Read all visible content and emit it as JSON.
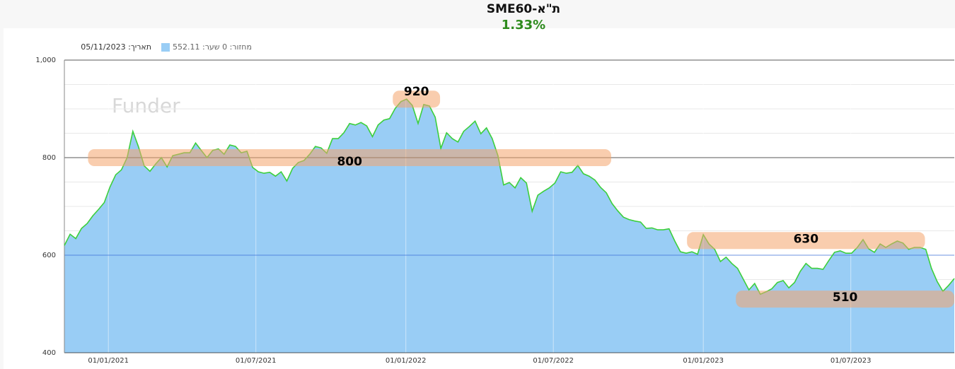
{
  "chart_data": {
    "type": "area",
    "title": "ת\"א-SME60",
    "change": "1.33%",
    "legend_date": "תאריך: 05/11/2023",
    "watermark": "Funder",
    "x": [
      "2020-11-08",
      "2020-11-15",
      "2020-11-22",
      "2020-11-29",
      "2020-12-06",
      "2020-12-13",
      "2020-12-20",
      "2020-12-27",
      "2021-01-03",
      "2021-01-10",
      "2021-01-17",
      "2021-01-24",
      "2021-01-31",
      "2021-02-07",
      "2021-02-14",
      "2021-02-21",
      "2021-02-28",
      "2021-03-07",
      "2021-03-14",
      "2021-03-21",
      "2021-03-28",
      "2021-04-04",
      "2021-04-11",
      "2021-04-18",
      "2021-04-25",
      "2021-05-02",
      "2021-05-09",
      "2021-05-16",
      "2021-05-23",
      "2021-05-30",
      "2021-06-06",
      "2021-06-13",
      "2021-06-20",
      "2021-06-27",
      "2021-07-04",
      "2021-07-11",
      "2021-07-18",
      "2021-07-25",
      "2021-08-01",
      "2021-08-08",
      "2021-08-15",
      "2021-08-22",
      "2021-08-29",
      "2021-09-05",
      "2021-09-12",
      "2021-09-19",
      "2021-09-26",
      "2021-10-03",
      "2021-10-10",
      "2021-10-17",
      "2021-10-24",
      "2021-10-31",
      "2021-11-07",
      "2021-11-14",
      "2021-11-21",
      "2021-11-28",
      "2021-12-05",
      "2021-12-12",
      "2021-12-19",
      "2021-12-26",
      "2022-01-02",
      "2022-01-09",
      "2022-01-16",
      "2022-01-23",
      "2022-01-30",
      "2022-02-06",
      "2022-02-13",
      "2022-02-20",
      "2022-02-27",
      "2022-03-06",
      "2022-03-13",
      "2022-03-20",
      "2022-03-27",
      "2022-04-03",
      "2022-04-10",
      "2022-04-17",
      "2022-04-24",
      "2022-05-01",
      "2022-05-08",
      "2022-05-15",
      "2022-05-22",
      "2022-05-29",
      "2022-06-05",
      "2022-06-12",
      "2022-06-19",
      "2022-06-26",
      "2022-07-03",
      "2022-07-10",
      "2022-07-17",
      "2022-07-24",
      "2022-07-31",
      "2022-08-07",
      "2022-08-14",
      "2022-08-21",
      "2022-08-28",
      "2022-09-04",
      "2022-09-11",
      "2022-09-18",
      "2022-09-25",
      "2022-10-02",
      "2022-10-09",
      "2022-10-16",
      "2022-10-23",
      "2022-10-30",
      "2022-11-06",
      "2022-11-13",
      "2022-11-20",
      "2022-11-27",
      "2022-12-04",
      "2022-12-11",
      "2022-12-18",
      "2022-12-25",
      "2023-01-01",
      "2023-01-08",
      "2023-01-15",
      "2023-01-22",
      "2023-01-29",
      "2023-02-05",
      "2023-02-12",
      "2023-02-19",
      "2023-02-26",
      "2023-03-05",
      "2023-03-12",
      "2023-03-19",
      "2023-03-26",
      "2023-04-02",
      "2023-04-09",
      "2023-04-16",
      "2023-04-23",
      "2023-04-30",
      "2023-05-07",
      "2023-05-14",
      "2023-05-21",
      "2023-05-28",
      "2023-06-04",
      "2023-06-11",
      "2023-06-18",
      "2023-06-25",
      "2023-07-02",
      "2023-07-09",
      "2023-07-16",
      "2023-07-23",
      "2023-07-30",
      "2023-08-06",
      "2023-08-13",
      "2023-08-20",
      "2023-08-27",
      "2023-09-03",
      "2023-09-10",
      "2023-09-17",
      "2023-09-24",
      "2023-10-01",
      "2023-10-08",
      "2023-10-15",
      "2023-10-22",
      "2023-10-29",
      "2023-11-05"
    ],
    "series": [
      {
        "name": "מחזור: 0 שער: 552.11",
        "color": "#99cdf5",
        "line_color": "#3ccf3c",
        "values": [
          620,
          643,
          634,
          655,
          665,
          681,
          694,
          708,
          740,
          765,
          775,
          800,
          854,
          822,
          783,
          772,
          787,
          800,
          781,
          804,
          807,
          810,
          810,
          830,
          815,
          800,
          815,
          818,
          807,
          826,
          823,
          810,
          813,
          780,
          771,
          768,
          770,
          762,
          771,
          752,
          778,
          790,
          794,
          807,
          823,
          820,
          809,
          839,
          839,
          851,
          870,
          867,
          872,
          865,
          843,
          867,
          877,
          880,
          901,
          915,
          920,
          907,
          870,
          909,
          906,
          883,
          819,
          851,
          839,
          832,
          854,
          864,
          875,
          849,
          861,
          839,
          804,
          744,
          749,
          738,
          759,
          748,
          690,
          723,
          731,
          738,
          748,
          771,
          768,
          770,
          784,
          767,
          762,
          754,
          739,
          728,
          706,
          691,
          678,
          673,
          670,
          668,
          655,
          656,
          652,
          652,
          654,
          629,
          607,
          604,
          607,
          602,
          642,
          623,
          612,
          587,
          596,
          583,
          573,
          551,
          529,
          542,
          520,
          525,
          531,
          544,
          548,
          533,
          544,
          567,
          583,
          573,
          573,
          571,
          589,
          606,
          609,
          604,
          604,
          616,
          632,
          613,
          606,
          623,
          616,
          623,
          629,
          625,
          612,
          616,
          616,
          612,
          573,
          546,
          526,
          538,
          552.11
        ]
      }
    ],
    "xlim": [
      "2020-11-08",
      "2023-11-05"
    ],
    "xticks": [
      {
        "value": "2021-01-01",
        "label": "01/01/2021"
      },
      {
        "value": "2021-07-01",
        "label": "01/07/2021"
      },
      {
        "value": "2022-01-01",
        "label": "01/01/2022"
      },
      {
        "value": "2022-07-01",
        "label": "01/07/2022"
      },
      {
        "value": "2023-01-01",
        "label": "01/01/2023"
      },
      {
        "value": "2023-07-01",
        "label": "01/07/2023"
      }
    ],
    "ylim": [
      400,
      1000
    ],
    "yticks": [
      400,
      600,
      800,
      {
        "value": 1000,
        "label": "1,000"
      }
    ],
    "minor_yticks": [
      450,
      500,
      550,
      650,
      700,
      750,
      850,
      900,
      950
    ],
    "annotations": [
      {
        "value": 920,
        "from": "2021-12-16",
        "to": "2022-02-12"
      },
      {
        "value": 800,
        "from": "2020-12-07",
        "to": "2022-09-10"
      },
      {
        "value": 630,
        "from": "2022-12-12",
        "to": "2023-09-30"
      },
      {
        "value": 510,
        "from": "2023-02-10",
        "to": "2023-11-05"
      }
    ],
    "grid": true
  }
}
